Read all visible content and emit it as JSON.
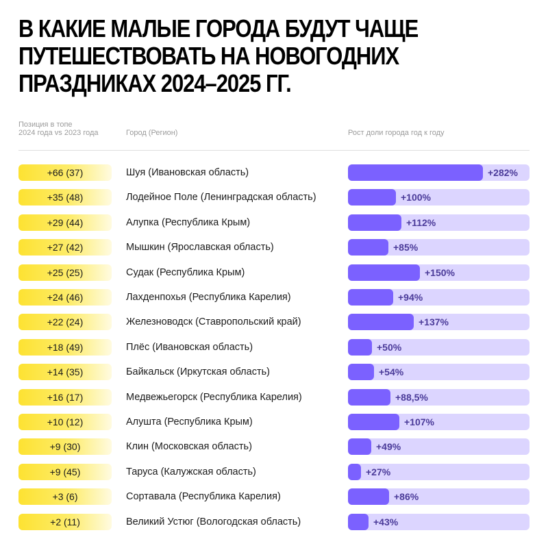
{
  "title": {
    "lines": [
      "В какие малые города будут чаще",
      "путешествовать на новогодних",
      "праздниках 2024–2025 гг."
    ]
  },
  "headers": {
    "position_line1": "Позиция в топе",
    "position_line2": "2024 года vs 2023 года",
    "city": "Город (Регион)",
    "growth": "Рост доли города год к году"
  },
  "colors": {
    "pill_yellow": "#fde232",
    "bar_fill": "#7b61ff",
    "bar_track": "#dcd5ff",
    "pct_text": "#4a3a99"
  },
  "rows": [
    {
      "position": "+66 (37)",
      "city": "Шуя (Ивановская область)",
      "growth_label": "+282%",
      "growth": 282
    },
    {
      "position": "+35 (48)",
      "city": "Лодейное Поле (Ленинградская область)",
      "growth_label": "+100%",
      "growth": 100
    },
    {
      "position": "+29 (44)",
      "city": "Алупка (Республика Крым)",
      "growth_label": "+112%",
      "growth": 112
    },
    {
      "position": "+27 (42)",
      "city": "Мышкин (Ярославская область)",
      "growth_label": "+85%",
      "growth": 85
    },
    {
      "position": "+25 (25)",
      "city": "Судак (Республика Крым)",
      "growth_label": "+150%",
      "growth": 150
    },
    {
      "position": "+24 (46)",
      "city": "Лахденпохья (Республика Карелия)",
      "growth_label": "+94%",
      "growth": 94
    },
    {
      "position": "+22 (24)",
      "city": "Железноводск (Ставропольский край)",
      "growth_label": "+137%",
      "growth": 137
    },
    {
      "position": "+18 (49)",
      "city": "Плёс (Ивановская область)",
      "growth_label": "+50%",
      "growth": 50
    },
    {
      "position": "+14 (35)",
      "city": "Байкальск (Иркутская область)",
      "growth_label": "+54%",
      "growth": 54
    },
    {
      "position": "+16 (17)",
      "city": "Медвежьегорск (Республика Карелия)",
      "growth_label": "+88,5%",
      "growth": 88.5
    },
    {
      "position": "+10 (12)",
      "city": "Алушта (Республика Крым)",
      "growth_label": "+107%",
      "growth": 107
    },
    {
      "position": "+9 (30)",
      "city": "Клин (Московская область)",
      "growth_label": "+49%",
      "growth": 49
    },
    {
      "position": "+9 (45)",
      "city": "Таруса (Калужская область)",
      "growth_label": "+27%",
      "growth": 27
    },
    {
      "position": "+3 (6)",
      "city": "Сортавала (Республика Карелия)",
      "growth_label": "+86%",
      "growth": 86
    },
    {
      "position": "+2 (11)",
      "city": "Великий Устюг (Вологодская область)",
      "growth_label": "+43%",
      "growth": 43
    }
  ],
  "chart_data": {
    "type": "bar",
    "orientation": "horizontal",
    "title": "В какие малые города будут чаще путешествовать на новогодних праздниках 2024–2025 гг.",
    "xlabel": "Рост доли города год к году",
    "ylabel": "Город (Регион)",
    "categories": [
      "Шуя (Ивановская область)",
      "Лодейное Поле (Ленинградская область)",
      "Алупка (Республика Крым)",
      "Мышкин (Ярославская область)",
      "Судак (Республика Крым)",
      "Лахденпохья (Республика Карелия)",
      "Железноводск (Ставропольский край)",
      "Плёс (Ивановская область)",
      "Байкальск (Иркутская область)",
      "Медвежьегорск (Республика Карелия)",
      "Алушта (Республика Крым)",
      "Клин (Московская область)",
      "Таруса (Калужская область)",
      "Сортавала (Республика Карелия)",
      "Великий Устюг (Вологодская область)"
    ],
    "series": [
      {
        "name": "Рост доли города год к году, %",
        "values": [
          282,
          100,
          112,
          85,
          150,
          94,
          137,
          50,
          54,
          88.5,
          107,
          49,
          27,
          86,
          43
        ]
      }
    ],
    "position_change": [
      "+66 (37)",
      "+35 (48)",
      "+29 (44)",
      "+27 (42)",
      "+25 (25)",
      "+24 (46)",
      "+22 (24)",
      "+18 (49)",
      "+14 (35)",
      "+16 (17)",
      "+10 (12)",
      "+9 (30)",
      "+9 (45)",
      "+3 (6)",
      "+2 (11)"
    ],
    "position_change_label": "Позиция в топе 2024 года vs 2023 года",
    "grid": false,
    "legend": null
  }
}
